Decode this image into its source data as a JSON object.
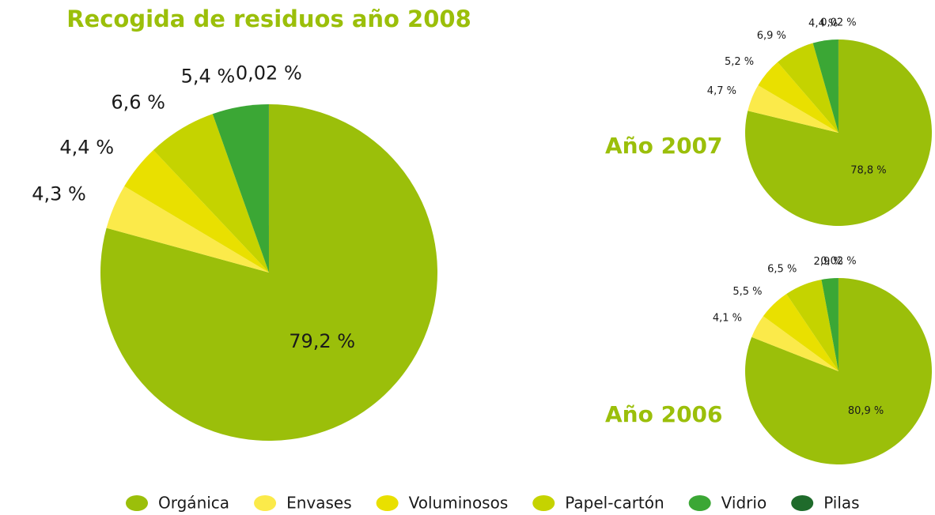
{
  "chart_data": [
    {
      "type": "pie",
      "title": "Recogida de residuos año 2008",
      "categories": [
        "Orgánica",
        "Envases",
        "Voluminosos",
        "Papel-cartón",
        "Vidrio",
        "Pilas"
      ],
      "colors": [
        "#9bbf0a",
        "#fbea4a",
        "#e9e000",
        "#c5d300",
        "#3ba735",
        "#1f6b2b"
      ],
      "values": [
        79.2,
        4.3,
        4.4,
        6.6,
        5.4,
        0.02
      ],
      "value_labels": [
        "79,2 %",
        "4,3 %",
        "4,4 %",
        "6,6 %",
        "5,4 %",
        "0,02 %"
      ]
    },
    {
      "type": "pie",
      "title": "Año 2007",
      "values": [
        78.8,
        4.7,
        5.2,
        6.9,
        4.4,
        0.02
      ],
      "value_labels": [
        "78,8 %",
        "4,7 %",
        "5,2 %",
        "6,9 %",
        "4,4 %",
        "0,02 %"
      ]
    },
    {
      "type": "pie",
      "title": "Año 2006",
      "values": [
        80.9,
        4.1,
        5.5,
        6.5,
        2.9,
        0.02
      ],
      "value_labels": [
        "80,9 %",
        "4,1 %",
        "5,5 %",
        "6,5 %",
        "2,9 %",
        "0,02 %"
      ]
    }
  ]
}
